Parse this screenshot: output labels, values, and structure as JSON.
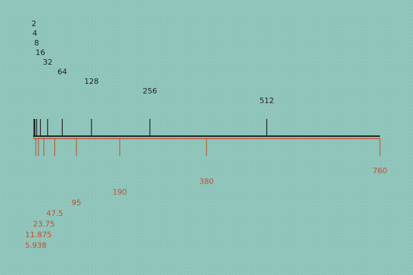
{
  "upper_scale": {
    "color": "#1a1a1a",
    "values": [
      2,
      4,
      8,
      16,
      32,
      64,
      128,
      256,
      512
    ],
    "labels": [
      "2",
      "4",
      "8",
      "16",
      "32",
      "64",
      "128",
      "256",
      "512"
    ]
  },
  "lower_scale": {
    "color": "#c0502d",
    "values": [
      5.938,
      11.875,
      23.75,
      47.5,
      95,
      190,
      380,
      760
    ],
    "labels": [
      "5.938",
      "11.875",
      "23.75",
      "47.5",
      "95",
      "190",
      "380",
      "760"
    ]
  },
  "range": [
    0,
    760
  ],
  "colors": {
    "background": "#8ec5bb",
    "baseline_dark": "#1a1a1a",
    "baseline_accent": "#c0502d"
  }
}
